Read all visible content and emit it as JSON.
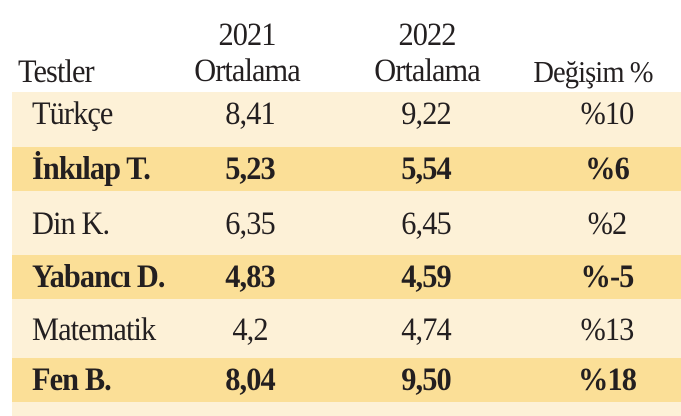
{
  "header": {
    "col1": "Testler",
    "col2_line1": "2021",
    "col2_line2": "Ortalama",
    "col3_line1": "2022",
    "col3_line2": "Ortalama",
    "col4": "Değişim %"
  },
  "rows": [
    {
      "name": "Türkçe",
      "v2021": "8,41",
      "v2022": "9,22",
      "change": "%10",
      "highlight": false
    },
    {
      "name": "İnkılap T.",
      "v2021": "5,23",
      "v2022": "5,54",
      "change": "%6",
      "highlight": true
    },
    {
      "name": "Din K.",
      "v2021": "6,35",
      "v2022": "6,45",
      "change": "%2",
      "highlight": false
    },
    {
      "name": "Yabancı D.",
      "v2021": "4,83",
      "v2022": "4,59",
      "change": "%-5",
      "highlight": true
    },
    {
      "name": "Matematik",
      "v2021": "4,2",
      "v2022": "4,74",
      "change": "%13",
      "highlight": false
    },
    {
      "name": "Fen B.",
      "v2021": "8,04",
      "v2022": "9,50",
      "change": "%18",
      "highlight": true
    }
  ],
  "colors": {
    "row_light": "#fdf1d7",
    "row_highlight": "#fbdf97",
    "text": "#231f20"
  }
}
